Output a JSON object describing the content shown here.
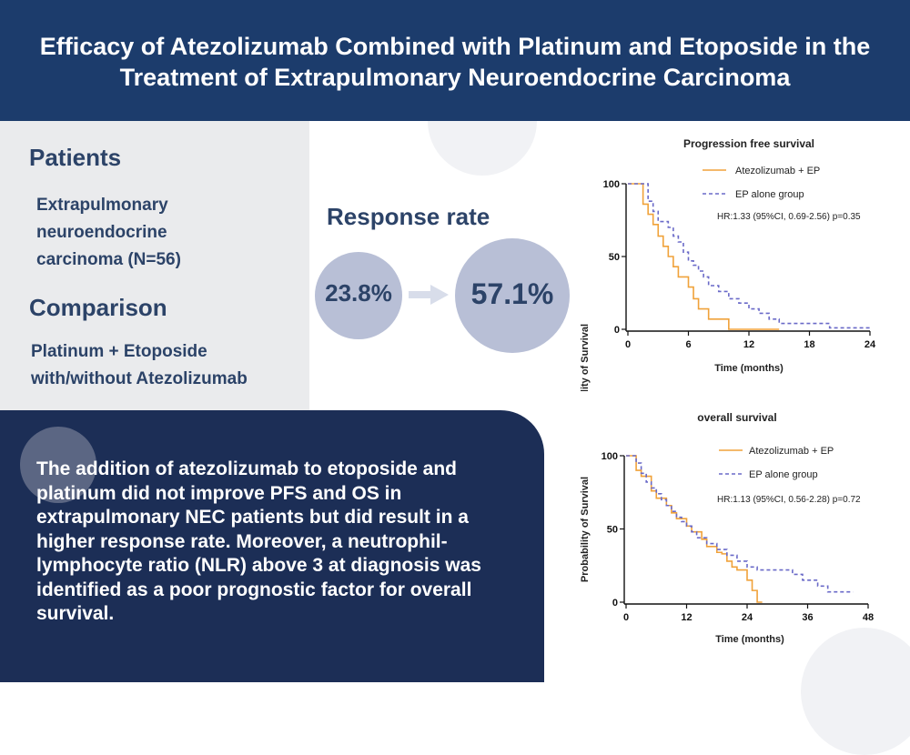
{
  "header": {
    "title_line1": "Efficacy of Atezolizumab Combined with Platinum and Etoposide in the",
    "title_line2": "Treatment of Extrapulmonary Neuroendocrine Carcinoma"
  },
  "left": {
    "patients_heading": "Patients",
    "patients_lines": [
      "Extrapulmonary",
      "neuroendocrine",
      "carcinoma (N=56)"
    ],
    "comparison_heading": "Comparison",
    "comparison_lines": [
      "Platinum + Etoposide",
      "with/without Atezolizumab"
    ]
  },
  "response": {
    "title": "Response rate",
    "before": "23.8%",
    "after": "57.1%"
  },
  "summary": {
    "lines": [
      "The addition of atezolizumab to etoposide and",
      "platinum did not improve PFS and OS in",
      "extrapulmonary NEC patients but did result in a",
      "higher response rate. Moreover, a neutrophil-",
      "lymphocyte ratio (NLR) above 3 at diagnosis was",
      "identified as a poor prognostic factor for overall",
      "survival."
    ]
  },
  "colors": {
    "header_bg": "#1c3c6c",
    "summary_bg": "#1c2e56",
    "circle_fill": "#b8bfd6",
    "atezo_line": "#f0a23a",
    "ep_line": "#6a6ac8"
  },
  "chart_data": [
    {
      "type": "line",
      "title": "Progression free survival",
      "xlabel": "Time (months)",
      "ylabel": "Probability of Survival",
      "xlim": [
        0,
        24
      ],
      "ylim": [
        0,
        100
      ],
      "xticks": [
        0,
        6,
        12,
        18,
        24
      ],
      "yticks": [
        0,
        50,
        100
      ],
      "annotation": "HR:1.33 (95%CI, 0.69-2.56) p=0.35",
      "legend_position": "top-right",
      "series": [
        {
          "name": "Atezolizumab + EP",
          "style": "solid",
          "color": "#f0a23a",
          "x": [
            0,
            1.5,
            2,
            2.5,
            3,
            3.5,
            4,
            4.5,
            5,
            6,
            6.5,
            7,
            8,
            9,
            10,
            15
          ],
          "y": [
            100,
            86,
            79,
            72,
            64,
            57,
            50,
            43,
            36,
            29,
            21,
            14,
            7,
            7,
            0,
            0
          ]
        },
        {
          "name": "EP alone group",
          "style": "dashed",
          "color": "#6a6ac8",
          "x": [
            0,
            2,
            2.5,
            3,
            4,
            4.5,
            5,
            5.5,
            6,
            6.5,
            7,
            7.5,
            8,
            9,
            10,
            11,
            12,
            13,
            14,
            15,
            17,
            20,
            24
          ],
          "y": [
            100,
            88,
            81,
            74,
            70,
            64,
            60,
            53,
            47,
            44,
            40,
            36,
            30,
            26,
            21,
            18,
            14,
            11,
            7,
            4,
            4,
            1,
            1
          ]
        }
      ]
    },
    {
      "type": "line",
      "title": "overall survival",
      "xlabel": "Time (months)",
      "ylabel": "Probability of Survival",
      "xlim": [
        0,
        48
      ],
      "ylim": [
        0,
        100
      ],
      "xticks": [
        0,
        12,
        24,
        36,
        48
      ],
      "yticks": [
        0,
        50,
        100
      ],
      "annotation": "HR:1.13 (95%CI, 0.56-2.28) p=0.72",
      "legend_position": "top-right",
      "series": [
        {
          "name": "Atezolizumab + EP",
          "style": "solid",
          "color": "#f0a23a",
          "x": [
            0,
            2,
            3,
            5,
            6,
            8,
            9,
            10,
            12,
            13,
            15,
            16,
            18,
            19,
            20,
            21,
            22,
            23,
            24,
            25,
            26,
            27
          ],
          "y": [
            100,
            90,
            86,
            76,
            71,
            66,
            61,
            57,
            52,
            48,
            43,
            38,
            34,
            33,
            28,
            24,
            22,
            22,
            15,
            8,
            0,
            0
          ]
        },
        {
          "name": "EP alone group",
          "style": "dashed",
          "color": "#6a6ac8",
          "x": [
            0,
            2,
            3,
            4,
            5,
            6,
            7,
            8,
            9,
            10,
            11,
            12,
            13,
            14,
            16,
            18,
            20,
            22,
            24,
            26,
            28,
            30,
            32,
            33,
            35,
            38,
            40,
            45
          ],
          "y": [
            100,
            95,
            88,
            82,
            78,
            74,
            70,
            66,
            62,
            58,
            55,
            52,
            48,
            44,
            40,
            36,
            32,
            28,
            24,
            22,
            22,
            22,
            22,
            19,
            15,
            11,
            7,
            7
          ]
        }
      ]
    }
  ]
}
